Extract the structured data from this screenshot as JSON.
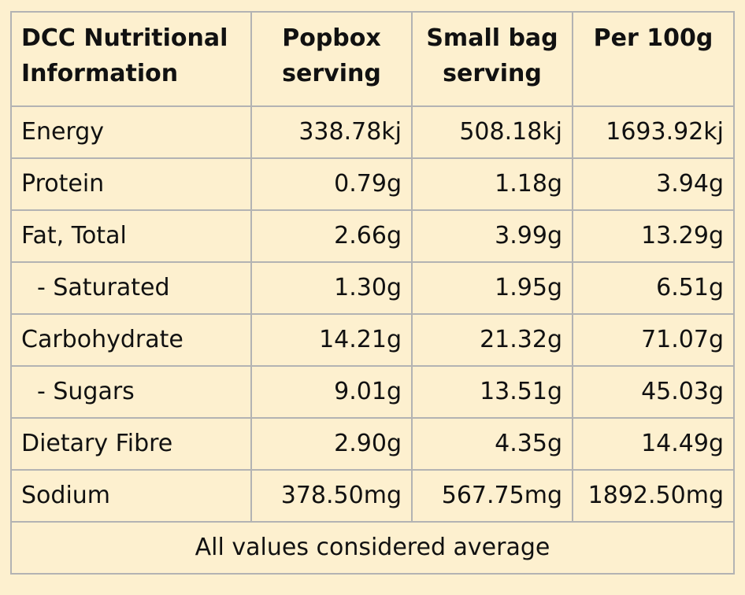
{
  "table": {
    "headers": [
      "DCC Nutritional Information",
      "Popbox serving",
      "Small bag serving",
      "Per 100g"
    ],
    "rows": [
      {
        "label": "Energy",
        "indent": false,
        "values": [
          "338.78kj",
          "508.18kj",
          "1693.92kj"
        ]
      },
      {
        "label": "Protein",
        "indent": false,
        "values": [
          "0.79g",
          "1.18g",
          "3.94g"
        ]
      },
      {
        "label": "Fat, Total",
        "indent": false,
        "values": [
          "2.66g",
          "3.99g",
          "13.29g"
        ]
      },
      {
        "label": "- Saturated",
        "indent": true,
        "values": [
          "1.30g",
          "1.95g",
          "6.51g"
        ]
      },
      {
        "label": "Carbohydrate",
        "indent": false,
        "values": [
          "14.21g",
          "21.32g",
          "71.07g"
        ]
      },
      {
        "label": "- Sugars",
        "indent": true,
        "values": [
          "9.01g",
          "13.51g",
          "45.03g"
        ]
      },
      {
        "label": "Dietary Fibre",
        "indent": false,
        "values": [
          "2.90g",
          "4.35g",
          "14.49g"
        ]
      },
      {
        "label": "Sodium",
        "indent": false,
        "values": [
          "378.50mg",
          "567.75mg",
          "1892.50mg"
        ]
      }
    ],
    "footer": "All values considered average"
  },
  "colors": {
    "background": "#fdf0cf",
    "border": "#b3b3b3",
    "text": "#111111"
  }
}
